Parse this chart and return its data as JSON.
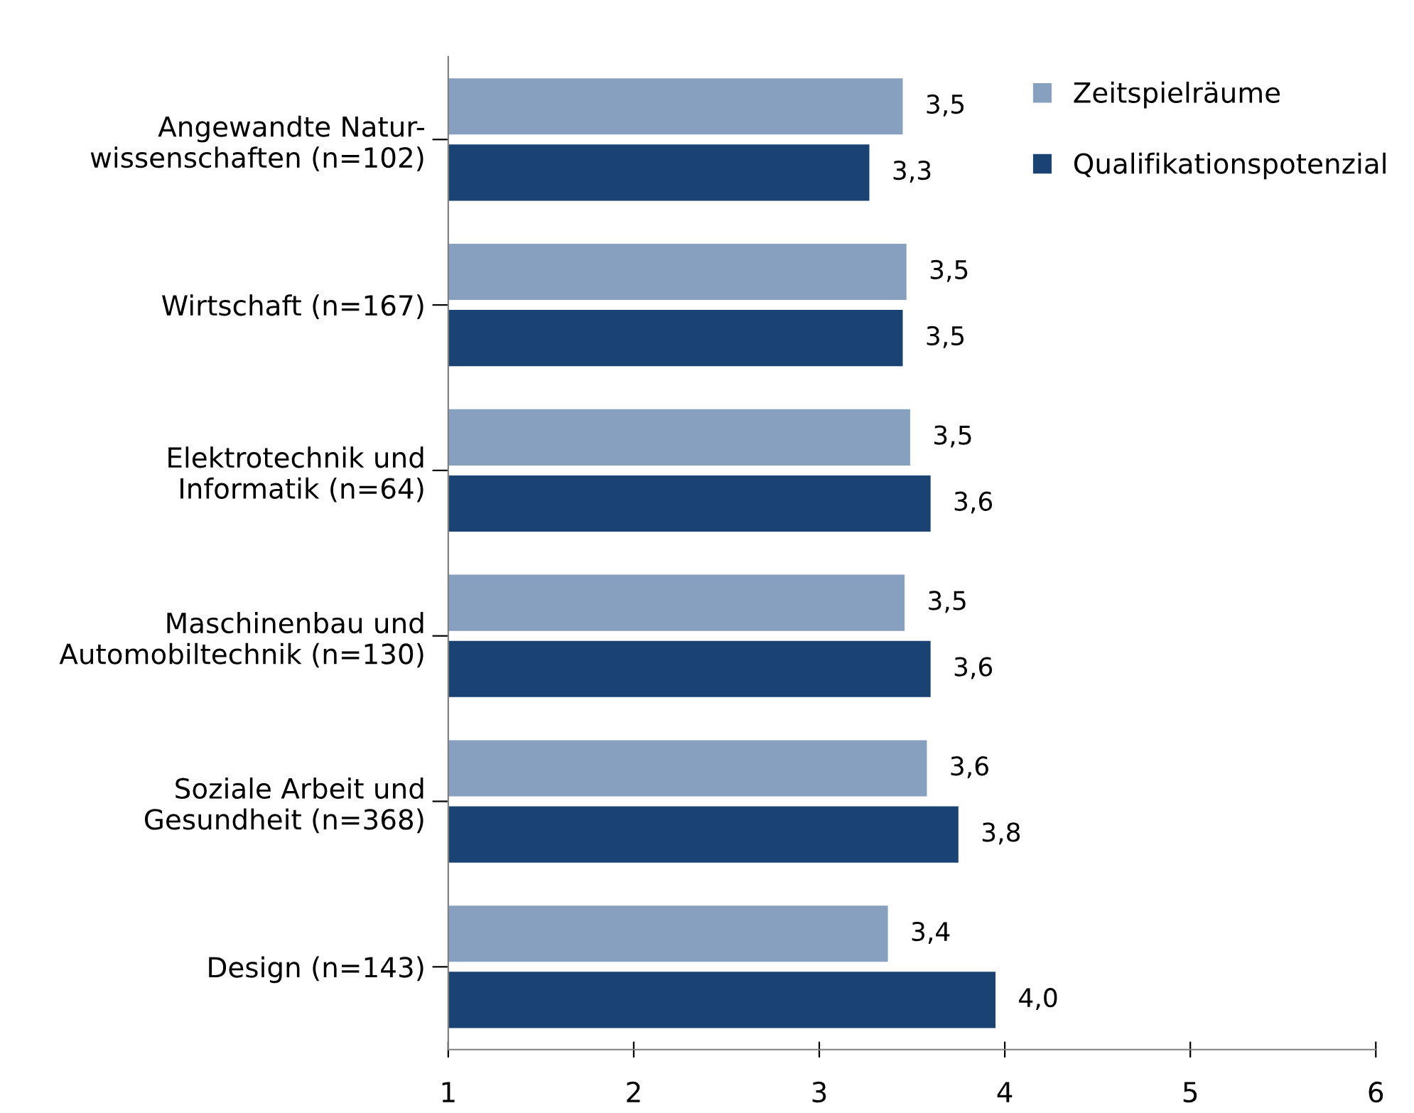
{
  "chart_data": {
    "type": "bar",
    "orientation": "horizontal",
    "categories": [
      "Angewandte Natur-\nwissenschaften (n=102)",
      "Wirtschaft (n=167)",
      "Elektrotechnik und\nInformatik (n=64)",
      "Maschinenbau und\nAutomobiltechnik (n=130)",
      "Soziale Arbeit und\nGesundheit (n=368)",
      "Design (n=143)"
    ],
    "series": [
      {
        "name": "Zeitspielräume",
        "color": "#87a0c0",
        "values": [
          3.45,
          3.47,
          3.49,
          3.46,
          3.58,
          3.37
        ],
        "value_labels": [
          "3,5",
          "3,5",
          "3,5",
          "3,5",
          "3,6",
          "3,4"
        ]
      },
      {
        "name": "Qualifikationspotenzial",
        "color": "#1a4273",
        "values": [
          3.27,
          3.45,
          3.6,
          3.6,
          3.75,
          3.95
        ],
        "value_labels": [
          "3,3",
          "3,5",
          "3,6",
          "3,6",
          "3,8",
          "4,0"
        ]
      }
    ],
    "xlim": [
      1,
      6
    ],
    "xticks": [
      1,
      2,
      3,
      4,
      5,
      6
    ],
    "grid": false,
    "legend": "top right"
  }
}
